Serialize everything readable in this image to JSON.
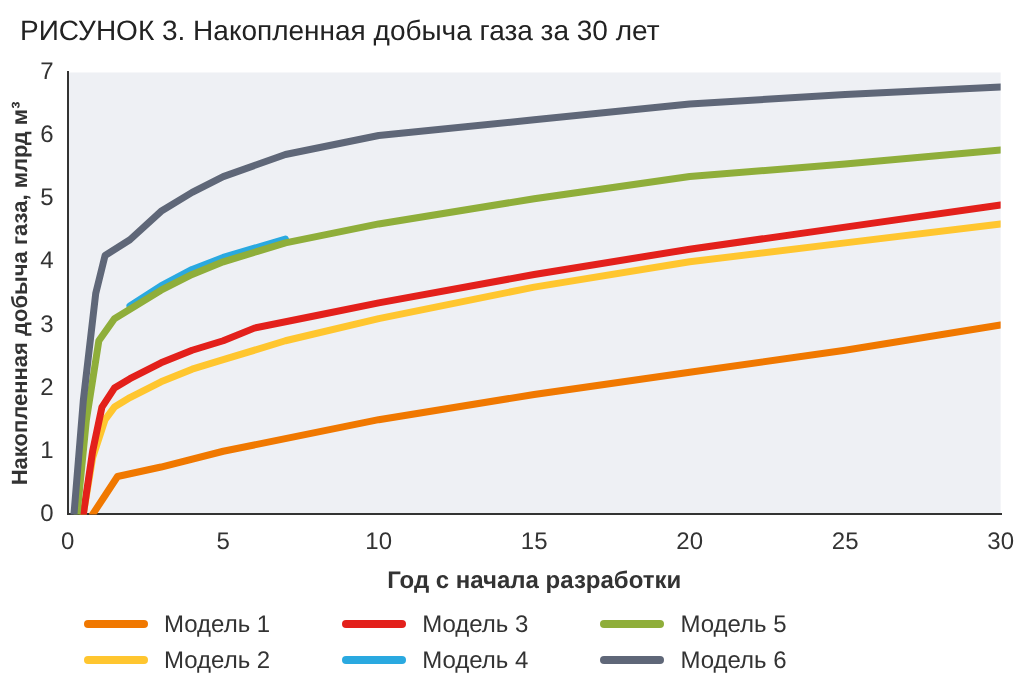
{
  "chart_data": {
    "type": "line",
    "title": "РИСУНОК 3. Накопленная добыча газа за 30 лет",
    "xlabel": "Год с начала разработки",
    "ylabel": "Накопленная добыча газа, млрд м³",
    "xlim": [
      0,
      30
    ],
    "ylim": [
      0,
      7
    ],
    "xticks": [
      0,
      5,
      10,
      15,
      20,
      25,
      30
    ],
    "yticks": [
      0,
      1,
      2,
      3,
      4,
      5,
      6,
      7
    ],
    "grid": false,
    "legend": "bottom",
    "marker": "none",
    "line_style": "solid",
    "series": [
      {
        "name": "Модель 1",
        "color": "#f07800",
        "x": [
          0.8,
          1.2,
          1.6,
          3,
          5,
          10,
          15,
          20,
          25,
          30
        ],
        "values": [
          0,
          0.3,
          0.6,
          0.75,
          1.0,
          1.5,
          1.9,
          2.25,
          2.6,
          3.0
        ]
      },
      {
        "name": "Модель 2",
        "color": "#ffc62f",
        "x": [
          0.5,
          0.8,
          1.2,
          1.5,
          2,
          3,
          4,
          5,
          7,
          10,
          15,
          20,
          25,
          30
        ],
        "values": [
          0,
          0.9,
          1.5,
          1.7,
          1.85,
          2.1,
          2.3,
          2.45,
          2.75,
          3.1,
          3.6,
          4.0,
          4.3,
          4.6
        ]
      },
      {
        "name": "Модель 3",
        "color": "#e3201b",
        "x": [
          0.5,
          0.8,
          1.1,
          1.5,
          2,
          3,
          4,
          5,
          6,
          8,
          10,
          15,
          20,
          25,
          30
        ],
        "values": [
          0,
          1.0,
          1.7,
          2.0,
          2.15,
          2.4,
          2.6,
          2.75,
          2.95,
          3.15,
          3.35,
          3.8,
          4.2,
          4.55,
          4.9
        ]
      },
      {
        "name": "Модель 4",
        "color": "#2aa9e0",
        "x": [
          2,
          3,
          4,
          5,
          7
        ],
        "values": [
          3.3,
          3.62,
          3.88,
          4.07,
          4.36
        ]
      },
      {
        "name": "Модель 5",
        "color": "#8fae3a",
        "x": [
          0.3,
          0.6,
          1,
          1.5,
          2,
          3,
          4,
          5,
          7,
          10,
          15,
          20,
          25,
          30
        ],
        "values": [
          0,
          1.5,
          2.75,
          3.1,
          3.25,
          3.55,
          3.8,
          4.0,
          4.3,
          4.6,
          5.0,
          5.35,
          5.55,
          5.77
        ]
      },
      {
        "name": "Модель 6",
        "color": "#5f6778",
        "x": [
          0.2,
          0.5,
          0.9,
          1.2,
          2,
          3,
          4,
          5,
          7,
          10,
          15,
          20,
          25,
          30
        ],
        "values": [
          0,
          1.8,
          3.5,
          4.1,
          4.35,
          4.8,
          5.1,
          5.35,
          5.7,
          6.0,
          6.25,
          6.5,
          6.65,
          6.77
        ]
      }
    ]
  }
}
